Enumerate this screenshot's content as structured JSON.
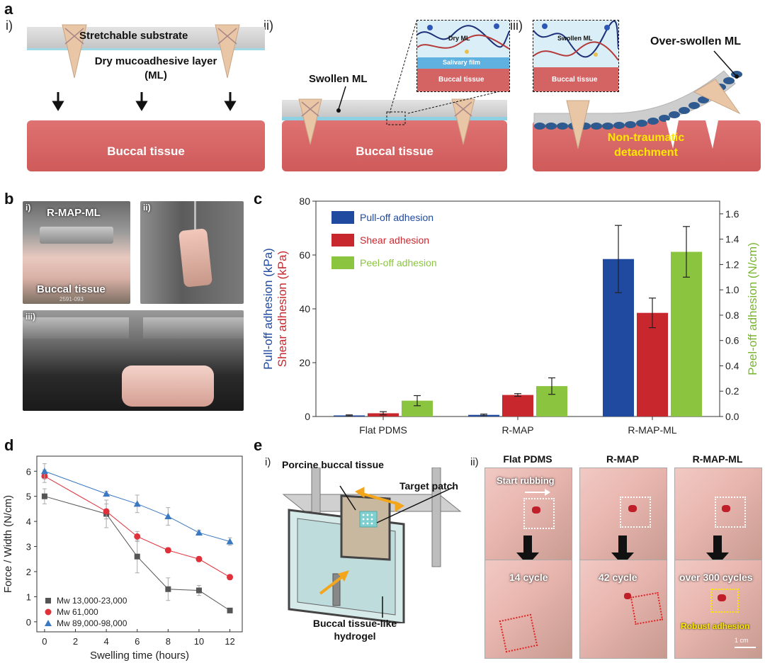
{
  "panel_a": {
    "label": "a",
    "steps": [
      "i)",
      "ii)",
      "iii)"
    ],
    "substrate_label": "Stretchable substrate",
    "ml_label_line1": "Dry mucoadhesive layer",
    "ml_label_line2": "(ML)",
    "tissue_label": "Buccal tissue",
    "swollen_label": "Swollen ML",
    "inset1": {
      "ml": "Dry ML",
      "film": "Salivary film",
      "tissue": "Buccal tissue"
    },
    "inset2": {
      "ml": "Swollen ML",
      "tissue": "Buccal tissue"
    },
    "overswollen_label": "Over-swollen ML",
    "detach_line1": "Non-traumatic",
    "detach_line2": "detachment"
  },
  "panel_b": {
    "label": "b",
    "photos": [
      {
        "tag": "i)",
        "top_label": "R-MAP-ML",
        "bottom_label": "Buccal tissue",
        "stamp": "2591-093"
      },
      {
        "tag": "ii)"
      },
      {
        "tag": "iii)"
      }
    ]
  },
  "panel_c": {
    "label": "c"
  },
  "panel_d": {
    "label": "d"
  },
  "panel_e": {
    "label": "e",
    "sub_i": "i)",
    "sub_ii": "ii)",
    "schematic": {
      "porcine": "Porcine buccal tissue",
      "target": "Target patch",
      "hydrogel_line1": "Buccal tissue-like",
      "hydrogel_line2": "hydrogel"
    },
    "columns": [
      "Flat PDMS",
      "R-MAP",
      "R-MAP-ML"
    ],
    "start_rubbing": "Start rubbing",
    "cycles": [
      "14 cycle",
      "42 cycle",
      "over 300 cycles"
    ],
    "robust": "Robust adhesion",
    "scale": "1 cm"
  },
  "chart_data": [
    {
      "type": "bar",
      "categories": [
        "Flat PDMS",
        "R-MAP",
        "R-MAP-ML"
      ],
      "series": [
        {
          "name": "Pull-off adhesion",
          "axis": "left",
          "values": [
            0.4,
            0.6,
            58.5
          ],
          "errors": [
            0.2,
            0.3,
            12.5
          ],
          "color": "#1f4aa0"
        },
        {
          "name": "Shear adhesion",
          "axis": "left",
          "values": [
            1.2,
            8.0,
            38.5
          ],
          "errors": [
            0.6,
            0.5,
            5.5
          ],
          "color": "#c8272e"
        },
        {
          "name": "Peel-off adhesion",
          "axis": "right",
          "values": [
            0.125,
            0.24,
            1.3
          ],
          "errors": [
            0.04,
            0.065,
            0.2
          ],
          "color": "#8bc53f"
        }
      ],
      "ylabel_left_line1": "Pull-off adhesion (kPa)",
      "ylabel_left_line2": "Shear adhesion (kPa)",
      "ylabel_right": "Peel-off adhesion (N/cm)",
      "ylim_left": [
        0,
        80
      ],
      "yticks_left": [
        "0",
        "20",
        "40",
        "60",
        "80"
      ],
      "ylim_right": [
        0,
        1.7
      ],
      "yticks_right": [
        "0.0",
        "0.2",
        "0.4",
        "0.6",
        "0.8",
        "1.0",
        "1.2",
        "1.4",
        "1.6"
      ],
      "legend_position": "top-left"
    },
    {
      "type": "line",
      "xlabel": "Swelling time (hours)",
      "ylabel": "Force / Width (N/cm)",
      "xlim": [
        -0.5,
        12.8
      ],
      "ylim": [
        -0.4,
        6.6
      ],
      "xticks": [
        "0",
        "2",
        "4",
        "6",
        "8",
        "10",
        "12"
      ],
      "yticks": [
        "0",
        "1",
        "2",
        "3",
        "4",
        "5",
        "6"
      ],
      "x": [
        0,
        4,
        6,
        8,
        10,
        12
      ],
      "series": [
        {
          "name": "Mw 13,000-23,000",
          "marker": "square",
          "color": "#555555",
          "values": [
            5.0,
            4.3,
            2.6,
            1.3,
            1.25,
            0.45
          ],
          "errors": [
            0.3,
            0.55,
            0.65,
            0.45,
            0.2,
            0.05
          ]
        },
        {
          "name": "Mw 61,000",
          "marker": "circle",
          "color": "#e0303a",
          "values": [
            5.8,
            4.4,
            3.4,
            2.85,
            2.5,
            1.78
          ],
          "errors": [
            0.25,
            0.3,
            0.2,
            0.1,
            0.1,
            0.1
          ]
        },
        {
          "name": "Mw 89,000-98,000",
          "marker": "triangle",
          "color": "#3a78c2",
          "values": [
            6.0,
            5.1,
            4.7,
            4.2,
            3.55,
            3.2
          ],
          "errors": [
            0.3,
            0.1,
            0.35,
            0.35,
            0.1,
            0.15
          ]
        }
      ],
      "legend_position": "bottom-left"
    }
  ]
}
